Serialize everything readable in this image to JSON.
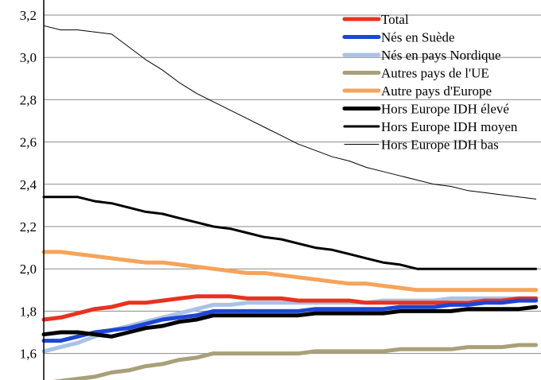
{
  "chart_data": {
    "type": "line",
    "title": "",
    "xlabel": "",
    "ylabel": "",
    "ylim": [
      1.5,
      3.2
    ],
    "x": [
      1,
      2,
      3,
      4,
      5,
      6,
      7,
      8,
      9,
      10,
      11,
      12,
      13,
      14,
      15,
      16,
      17,
      18,
      19,
      20,
      21,
      22,
      23,
      24,
      25,
      26,
      27,
      28,
      29,
      30
    ],
    "xlim": [
      1,
      30.3
    ],
    "y_ticks": [
      "1,6",
      "1,8",
      "2,0",
      "2,2",
      "2,4",
      "2,6",
      "2,8",
      "3,0",
      "3,2"
    ],
    "grid": true,
    "legend_position": "top-right",
    "series": [
      {
        "name": "Total",
        "color": "#e8321f",
        "width": 5,
        "values": [
          1.76,
          1.77,
          1.79,
          1.81,
          1.82,
          1.84,
          1.84,
          1.85,
          1.86,
          1.87,
          1.87,
          1.87,
          1.86,
          1.86,
          1.86,
          1.85,
          1.85,
          1.85,
          1.85,
          1.84,
          1.84,
          1.84,
          1.84,
          1.84,
          1.84,
          1.84,
          1.85,
          1.85,
          1.86,
          1.86
        ]
      },
      {
        "name": "Nés en Suède",
        "color": "#1c46d6",
        "width": 5,
        "values": [
          1.66,
          1.66,
          1.68,
          1.7,
          1.71,
          1.72,
          1.74,
          1.76,
          1.77,
          1.78,
          1.8,
          1.8,
          1.8,
          1.8,
          1.8,
          1.8,
          1.81,
          1.81,
          1.81,
          1.81,
          1.81,
          1.82,
          1.82,
          1.82,
          1.83,
          1.83,
          1.84,
          1.84,
          1.85,
          1.85
        ]
      },
      {
        "name": "Nés en pays Nordique",
        "color": "#a9c2e8",
        "width": 5,
        "values": [
          1.61,
          1.63,
          1.65,
          1.68,
          1.71,
          1.73,
          1.75,
          1.77,
          1.79,
          1.81,
          1.83,
          1.83,
          1.84,
          1.84,
          1.84,
          1.84,
          1.84,
          1.84,
          1.84,
          1.84,
          1.85,
          1.85,
          1.85,
          1.85,
          1.86,
          1.86,
          1.86,
          1.86,
          1.86,
          1.86
        ]
      },
      {
        "name": "Autres pays de l'UE",
        "color": "#a8a079",
        "width": 5,
        "values": [
          1.46,
          1.47,
          1.48,
          1.49,
          1.51,
          1.52,
          1.54,
          1.55,
          1.57,
          1.58,
          1.6,
          1.6,
          1.6,
          1.6,
          1.6,
          1.6,
          1.61,
          1.61,
          1.61,
          1.61,
          1.61,
          1.62,
          1.62,
          1.62,
          1.62,
          1.63,
          1.63,
          1.63,
          1.64,
          1.64
        ]
      },
      {
        "name": "Autre pays d'Europe",
        "color": "#f5a45a",
        "width": 5,
        "values": [
          2.08,
          2.08,
          2.07,
          2.06,
          2.05,
          2.04,
          2.03,
          2.03,
          2.02,
          2.01,
          2.0,
          1.99,
          1.98,
          1.98,
          1.97,
          1.96,
          1.95,
          1.94,
          1.93,
          1.93,
          1.92,
          1.91,
          1.9,
          1.9,
          1.9,
          1.9,
          1.9,
          1.9,
          1.9,
          1.9
        ]
      },
      {
        "name": "Hors Europe IDH élevé",
        "color": "#000000",
        "width": 5,
        "values": [
          1.69,
          1.7,
          1.7,
          1.69,
          1.68,
          1.7,
          1.72,
          1.73,
          1.75,
          1.76,
          1.78,
          1.78,
          1.78,
          1.78,
          1.78,
          1.78,
          1.79,
          1.79,
          1.79,
          1.79,
          1.79,
          1.8,
          1.8,
          1.8,
          1.8,
          1.81,
          1.81,
          1.81,
          1.81,
          1.82
        ]
      },
      {
        "name": "Hors Europe IDH moyen",
        "color": "#000000",
        "width": 3,
        "values": [
          2.34,
          2.34,
          2.34,
          2.32,
          2.31,
          2.29,
          2.27,
          2.26,
          2.24,
          2.22,
          2.2,
          2.19,
          2.17,
          2.15,
          2.14,
          2.12,
          2.1,
          2.09,
          2.07,
          2.05,
          2.03,
          2.02,
          2.0,
          2.0,
          2.0,
          2.0,
          2.0,
          2.0,
          2.0,
          2.0
        ]
      },
      {
        "name": "Hors Europe IDH bas",
        "color": "#000000",
        "width": 1,
        "values": [
          3.15,
          3.13,
          3.13,
          3.12,
          3.11,
          3.05,
          2.99,
          2.94,
          2.88,
          2.83,
          2.79,
          2.75,
          2.71,
          2.67,
          2.63,
          2.59,
          2.56,
          2.53,
          2.51,
          2.48,
          2.46,
          2.44,
          2.42,
          2.4,
          2.39,
          2.37,
          2.36,
          2.35,
          2.34,
          2.33
        ]
      }
    ]
  }
}
